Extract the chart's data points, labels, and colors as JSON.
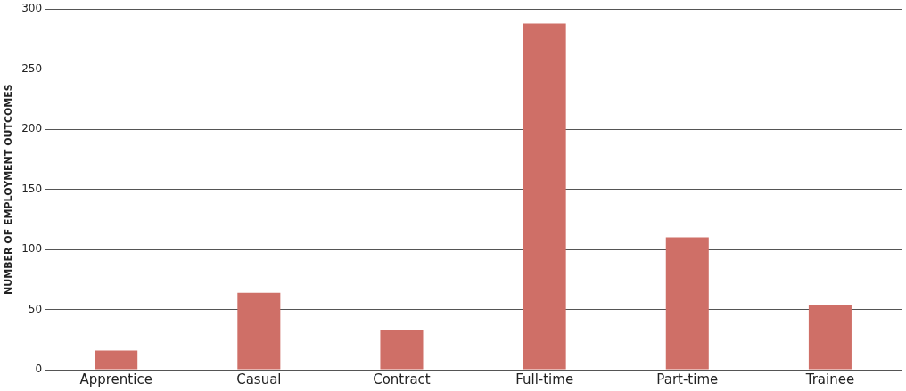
{
  "chart_data": {
    "type": "bar",
    "ylabel": "NUMBER OF EMPLOYMENT OUTCOMES",
    "categories": [
      "Apprentice",
      "Casual",
      "Contract",
      "Full-time",
      "Part-time",
      "Trainee"
    ],
    "values": [
      16,
      64,
      33,
      288,
      110,
      54
    ],
    "color": "#cf6f67",
    "ylim": [
      0,
      300
    ],
    "yticks": [
      0,
      50,
      100,
      150,
      200,
      250,
      300
    ],
    "grid": "y"
  }
}
